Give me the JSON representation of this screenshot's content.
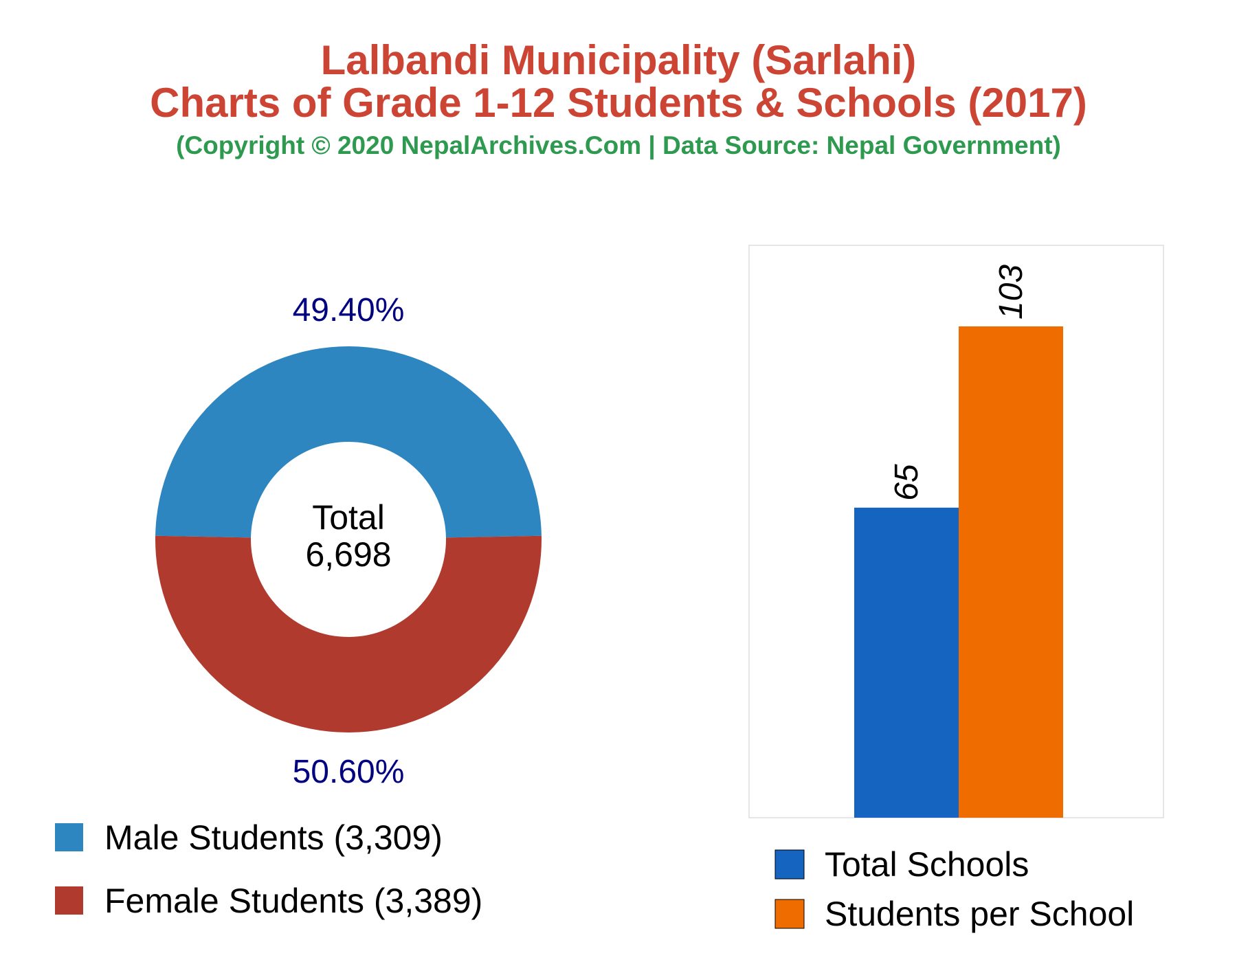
{
  "header": {
    "title_line1": "Lalbandi Municipality (Sarlahi)",
    "title_line2": "Charts of Grade 1-12 Students & Schools (2017)",
    "subtitle": "(Copyright © 2020 NepalArchives.Com | Data Source: Nepal Government)",
    "title_color": "#cc4433",
    "subtitle_color": "#2e9a4f"
  },
  "chart_data": [
    {
      "type": "pie",
      "variant": "donut",
      "center_label": "Total",
      "center_value": "6,698",
      "slices": [
        {
          "label": "Male Students (3,309)",
          "value": 3309,
          "percent_label": "49.40%",
          "color": "#2e86c1"
        },
        {
          "label": "Female Students (3,389)",
          "value": 3389,
          "percent_label": "50.60%",
          "color": "#b03a2e"
        }
      ],
      "label_color": "#000080",
      "legend_position": "bottom-left"
    },
    {
      "type": "bar",
      "categories": [
        "Total Schools",
        "Students per School"
      ],
      "values": [
        65,
        103
      ],
      "value_labels": [
        "65",
        "103"
      ],
      "colors": [
        "#1565c0",
        "#ef6c00"
      ],
      "ylim": [
        0,
        120
      ],
      "grid": false,
      "legend_position": "bottom"
    }
  ]
}
